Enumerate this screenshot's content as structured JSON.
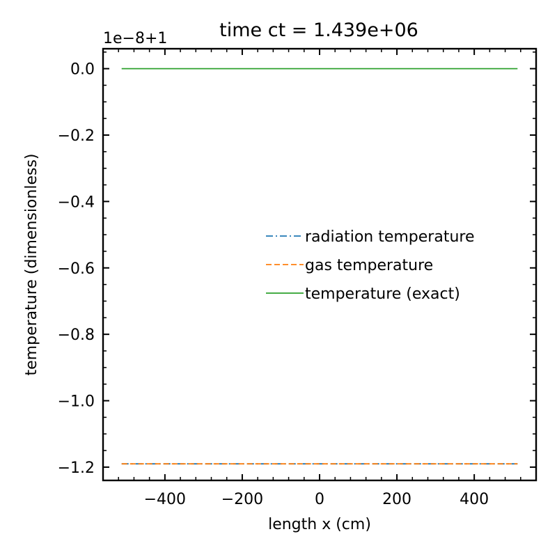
{
  "chart_data": {
    "type": "line",
    "title": "time ct = 1.439e+06",
    "offset_label": "1e−8+1",
    "xlabel": "length x (cm)",
    "ylabel": "temperature (dimensionless)",
    "xlim": [
      -560,
      560
    ],
    "ylim": [
      -1.24,
      0.06
    ],
    "xticks": [
      -400,
      -200,
      0,
      200,
      400
    ],
    "xtick_labels": [
      "−400",
      "−200",
      "0",
      "200",
      "400"
    ],
    "yticks": [
      0.0,
      -0.2,
      -0.4,
      -0.6,
      -0.8,
      -1.0,
      -1.2
    ],
    "ytick_labels": [
      "0.0",
      "−0.2",
      "−0.4",
      "−0.6",
      "−0.8",
      "−1.0",
      "−1.2"
    ],
    "legend_position": "center-right",
    "series": [
      {
        "name": "radiation temperature",
        "color": "#1f77b4",
        "style": "dashdot",
        "x": [
          -512,
          512
        ],
        "y": [
          -1.19,
          -1.19
        ]
      },
      {
        "name": "gas temperature",
        "color": "#ff7f0e",
        "style": "dashed",
        "x": [
          -512,
          512
        ],
        "y": [
          -1.19,
          -1.19
        ]
      },
      {
        "name": "temperature (exact)",
        "color": "#2ca02c",
        "style": "solid",
        "x": [
          -512,
          512
        ],
        "y": [
          0.0,
          0.0
        ]
      }
    ]
  }
}
